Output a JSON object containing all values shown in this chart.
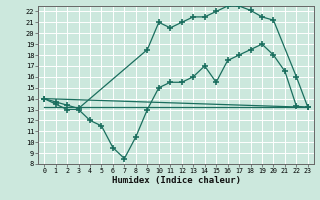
{
  "xlabel": "Humidex (Indice chaleur)",
  "bg_color": "#cce8dd",
  "line_color": "#1a6e5e",
  "grid_color": "#ffffff",
  "xlim": [
    -0.5,
    23.5
  ],
  "ylim": [
    8,
    22.5
  ],
  "xticks": [
    0,
    1,
    2,
    3,
    4,
    5,
    6,
    7,
    8,
    9,
    10,
    11,
    12,
    13,
    14,
    15,
    16,
    17,
    18,
    19,
    20,
    21,
    22,
    23
  ],
  "yticks": [
    8,
    9,
    10,
    11,
    12,
    13,
    14,
    15,
    16,
    17,
    18,
    19,
    20,
    21,
    22
  ],
  "line1_x": [
    0,
    23
  ],
  "line1_y": [
    14.0,
    13.2
  ],
  "line2_x": [
    0,
    1,
    2,
    3,
    9,
    10,
    11,
    12,
    13,
    14,
    15,
    16,
    17,
    18,
    19,
    20,
    22,
    23
  ],
  "line2_y": [
    14.0,
    13.7,
    13.4,
    13.1,
    18.5,
    21.0,
    20.5,
    21.0,
    21.5,
    21.5,
    22.0,
    22.5,
    22.5,
    22.1,
    21.5,
    21.2,
    16.0,
    13.2
  ],
  "line3_x": [
    0,
    1,
    2,
    3,
    4,
    5,
    6,
    7,
    8,
    9,
    10,
    11,
    12,
    13,
    14,
    15,
    16,
    17,
    18,
    19,
    20,
    21,
    22,
    23
  ],
  "line3_y": [
    14.0,
    13.5,
    13.0,
    13.0,
    12.0,
    11.5,
    9.5,
    8.5,
    10.5,
    13.0,
    15.0,
    15.5,
    15.5,
    16.0,
    17.0,
    15.5,
    17.5,
    18.0,
    18.5,
    19.0,
    18.0,
    16.5,
    13.3,
    13.2
  ],
  "line4_x": [
    0,
    1,
    2,
    3,
    18,
    19,
    20,
    21,
    22,
    23
  ],
  "line4_y": [
    13.2,
    13.2,
    13.2,
    13.2,
    13.2,
    13.2,
    13.2,
    13.2,
    13.2,
    13.2
  ]
}
